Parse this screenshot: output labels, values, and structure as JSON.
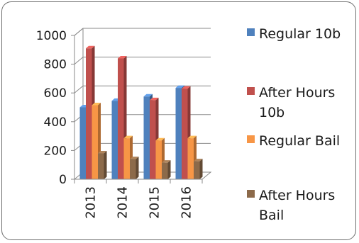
{
  "chart_data": {
    "type": "bar",
    "categories": [
      "2013",
      "2014",
      "2015",
      "2016"
    ],
    "series": [
      {
        "name": "Regular 10b",
        "values": [
          500,
          545,
          575,
          635
        ],
        "color": "#4f81bd"
      },
      {
        "name": "After Hours 10b",
        "values": [
          910,
          840,
          550,
          630
        ],
        "color": "#c0504d"
      },
      {
        "name": "Regular Bail",
        "values": [
          515,
          285,
          270,
          285
        ],
        "color": "#f79646"
      },
      {
        "name": "After Hours Bail",
        "values": [
          180,
          140,
          115,
          125
        ],
        "color": "#8c6a4a"
      }
    ],
    "yticks": [
      "0",
      "200",
      "400",
      "600",
      "800",
      "1000"
    ],
    "ylim": [
      0,
      1000
    ],
    "grid": true,
    "legend_position": "right",
    "three_d": true
  }
}
